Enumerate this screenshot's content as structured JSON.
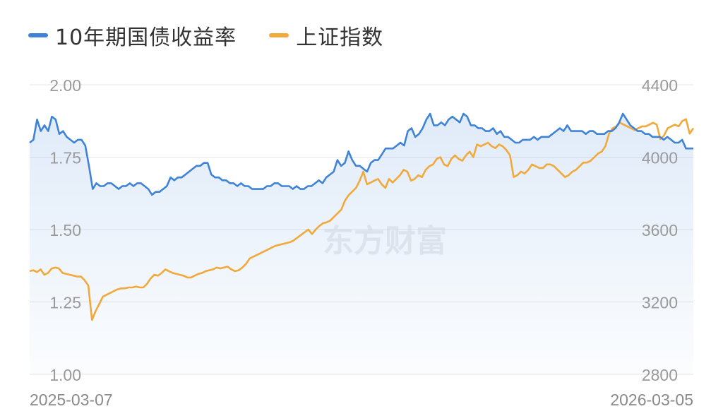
{
  "legend": {
    "series1": "10年期国债收益率",
    "series2": "上证指数"
  },
  "watermark": "东方财富",
  "colors": {
    "series1": "#3f83d9",
    "series2": "#f0a93a",
    "grid": "#e6e6e6"
  },
  "chart_data": {
    "type": "line",
    "x_start": "2025-03-07",
    "x_end": "2026-03-05",
    "y_left": {
      "min": 1.0,
      "max": 2.0,
      "ticks": [
        "2.00",
        "1.75",
        "1.50",
        "1.25",
        "1.00"
      ]
    },
    "y_right": {
      "min": 2800,
      "max": 4400,
      "ticks": [
        "4400",
        "4000",
        "3600",
        "3200",
        "2800"
      ]
    },
    "grid": true,
    "legend_position": "top-left",
    "series": [
      {
        "name": "10年期国债收益率",
        "axis": "left",
        "values": [
          1.8,
          1.81,
          1.88,
          1.84,
          1.86,
          1.84,
          1.89,
          1.88,
          1.83,
          1.84,
          1.82,
          1.81,
          1.8,
          1.81,
          1.81,
          1.79,
          1.72,
          1.64,
          1.66,
          1.65,
          1.65,
          1.66,
          1.66,
          1.65,
          1.64,
          1.65,
          1.65,
          1.66,
          1.65,
          1.66,
          1.66,
          1.65,
          1.64,
          1.62,
          1.63,
          1.63,
          1.64,
          1.65,
          1.68,
          1.67,
          1.68,
          1.68,
          1.69,
          1.7,
          1.71,
          1.72,
          1.72,
          1.73,
          1.73,
          1.69,
          1.68,
          1.68,
          1.67,
          1.67,
          1.66,
          1.66,
          1.65,
          1.66,
          1.65,
          1.65,
          1.64,
          1.64,
          1.64,
          1.64,
          1.65,
          1.65,
          1.66,
          1.66,
          1.65,
          1.65,
          1.65,
          1.64,
          1.65,
          1.64,
          1.64,
          1.65,
          1.65,
          1.66,
          1.67,
          1.66,
          1.68,
          1.69,
          1.7,
          1.74,
          1.72,
          1.73,
          1.77,
          1.74,
          1.72,
          1.72,
          1.71,
          1.7,
          1.73,
          1.74,
          1.74,
          1.76,
          1.78,
          1.78,
          1.78,
          1.79,
          1.8,
          1.79,
          1.84,
          1.85,
          1.82,
          1.83,
          1.85,
          1.88,
          1.9,
          1.86,
          1.86,
          1.87,
          1.86,
          1.88,
          1.89,
          1.88,
          1.87,
          1.9,
          1.89,
          1.86,
          1.86,
          1.85,
          1.85,
          1.84,
          1.84,
          1.85,
          1.83,
          1.84,
          1.82,
          1.82,
          1.81,
          1.8,
          1.8,
          1.81,
          1.81,
          1.81,
          1.82,
          1.81,
          1.82,
          1.82,
          1.82,
          1.83,
          1.84,
          1.85,
          1.84,
          1.86,
          1.84,
          1.84,
          1.84,
          1.84,
          1.83,
          1.84,
          1.84,
          1.83,
          1.83,
          1.83,
          1.84,
          1.84,
          1.85,
          1.87,
          1.9,
          1.88,
          1.86,
          1.85,
          1.84,
          1.84,
          1.83,
          1.83,
          1.82,
          1.82,
          1.82,
          1.81,
          1.82,
          1.81,
          1.8,
          1.8,
          1.81,
          1.78,
          1.78,
          1.78
        ]
      },
      {
        "name": "上证指数",
        "axis": "right",
        "values": [
          3370,
          3375,
          3365,
          3380,
          3350,
          3360,
          3385,
          3390,
          3385,
          3360,
          3355,
          3350,
          3345,
          3340,
          3340,
          3320,
          3290,
          3100,
          3150,
          3190,
          3230,
          3240,
          3250,
          3260,
          3270,
          3275,
          3275,
          3280,
          3280,
          3285,
          3280,
          3280,
          3300,
          3330,
          3350,
          3345,
          3360,
          3380,
          3370,
          3360,
          3355,
          3350,
          3345,
          3335,
          3335,
          3345,
          3355,
          3360,
          3370,
          3375,
          3380,
          3390,
          3385,
          3390,
          3395,
          3380,
          3370,
          3375,
          3390,
          3410,
          3440,
          3450,
          3460,
          3470,
          3480,
          3490,
          3500,
          3510,
          3515,
          3520,
          3525,
          3530,
          3540,
          3555,
          3570,
          3585,
          3600,
          3575,
          3600,
          3620,
          3635,
          3640,
          3650,
          3670,
          3690,
          3710,
          3760,
          3790,
          3810,
          3830,
          3870,
          3920,
          3850,
          3860,
          3870,
          3880,
          3850,
          3830,
          3880,
          3860,
          3880,
          3900,
          3930,
          3920,
          3870,
          3880,
          3900,
          3890,
          3930,
          3950,
          3960,
          3990,
          4000,
          3960,
          3950,
          3990,
          4010,
          3990,
          3980,
          4010,
          4030,
          4000,
          4070,
          4060,
          4070,
          4080,
          4060,
          4050,
          4070,
          4060,
          4040,
          4010,
          3890,
          3900,
          3920,
          3910,
          3930,
          3960,
          3950,
          3940,
          3940,
          3960,
          3960,
          3950,
          3930,
          3910,
          3890,
          3900,
          3920,
          3930,
          3950,
          3970,
          3970,
          3980,
          4000,
          4020,
          4030,
          4060,
          4130,
          4160,
          4170,
          4190,
          4180,
          4170,
          4160,
          4150,
          4160,
          4170,
          4170,
          4180,
          4190,
          4180,
          4100,
          4120,
          4160,
          4170,
          4180,
          4170,
          4200,
          4210,
          4130,
          4160
        ]
      }
    ]
  }
}
